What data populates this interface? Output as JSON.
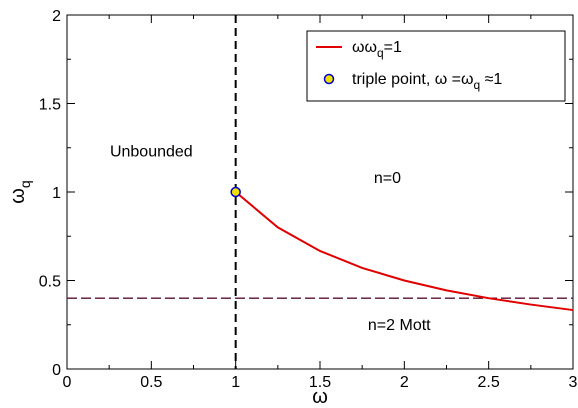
{
  "chart_data": {
    "type": "line",
    "title": "",
    "xlabel": "ω",
    "ylabel": "ω",
    "ylabel_sub": "q",
    "xlim": [
      0,
      3
    ],
    "ylim": [
      0,
      2
    ],
    "xticks": [
      0,
      0.5,
      1,
      1.5,
      2,
      2.5,
      3
    ],
    "xtick_labels": [
      "0",
      "0.5",
      "1",
      "1.5",
      "2",
      "2.5",
      "3"
    ],
    "yticks": [
      0,
      0.5,
      1,
      1.5,
      2
    ],
    "ytick_labels": [
      "0",
      "0.5",
      "1",
      "1.5",
      "2"
    ],
    "grid": false,
    "legend_position": "top-right",
    "series": [
      {
        "name_main": "ωω",
        "name_sub": "q",
        "name_tail": "=1",
        "kind": "line",
        "color": "#e00000",
        "x": [
          1.0,
          1.25,
          1.5,
          1.75,
          2.0,
          2.25,
          2.5,
          2.75,
          3.0
        ],
        "y": [
          1.0,
          0.8,
          0.667,
          0.571,
          0.5,
          0.444,
          0.4,
          0.364,
          0.333
        ]
      },
      {
        "name_main": "triple point, ω =ω",
        "name_sub": "q",
        "name_tail": " ≈1",
        "kind": "point",
        "fill": "#f0e000",
        "stroke": "#0000cc",
        "x": [
          1.0
        ],
        "y": [
          1.0
        ]
      }
    ],
    "reference_lines": [
      {
        "orientation": "vertical",
        "value": 1.0,
        "color": "#000000",
        "style": "dashed"
      },
      {
        "orientation": "horizontal",
        "value": 0.4,
        "color": "#5a1030",
        "style": "dashed"
      }
    ],
    "annotations": [
      {
        "text": "Unbounded",
        "x": 0.5,
        "y": 1.2
      },
      {
        "text": "n=0",
        "x": 1.9,
        "y": 1.05
      },
      {
        "text": "n=2 Mott",
        "x": 1.97,
        "y": 0.22
      }
    ]
  }
}
